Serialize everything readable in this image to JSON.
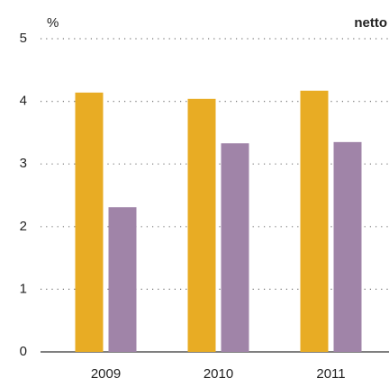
{
  "chart_data": {
    "type": "bar",
    "title": "netto",
    "y_label": "%",
    "categories": [
      "2009",
      "2010",
      "2011"
    ],
    "series": [
      {
        "color": "#e8ac24",
        "values": [
          4.14,
          4.04,
          4.17
        ]
      },
      {
        "color": "#a084a8",
        "values": [
          2.31,
          3.33,
          3.35
        ]
      }
    ],
    "ylim": [
      0,
      5
    ],
    "yticks": [
      0,
      1,
      2,
      3,
      4,
      5
    ],
    "grid": true
  }
}
